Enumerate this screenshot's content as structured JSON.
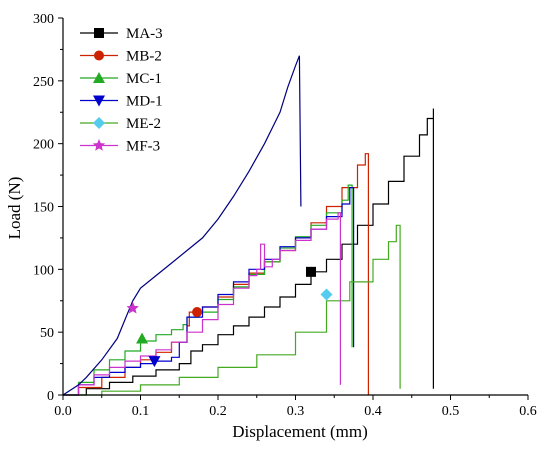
{
  "chart_data": {
    "type": "line",
    "xlabel": "Displacement (mm)",
    "ylabel": "Load (N)",
    "xlim": [
      0,
      0.6
    ],
    "ylim": [
      0,
      300
    ],
    "xticks": [
      "0.0",
      "0.1",
      "0.2",
      "0.3",
      "0.4",
      "0.5",
      "0.6"
    ],
    "yticks": [
      "0",
      "50",
      "100",
      "150",
      "200",
      "250",
      "300"
    ],
    "grid": false,
    "legend": "top-left",
    "series": [
      {
        "name": "MA-3",
        "color": "#000000",
        "marker": "square",
        "marker_at": [
          0.32,
          98
        ],
        "step": true,
        "points": [
          [
            0.0,
            0
          ],
          [
            0.03,
            5
          ],
          [
            0.06,
            10
          ],
          [
            0.09,
            15
          ],
          [
            0.12,
            20
          ],
          [
            0.15,
            25
          ],
          [
            0.165,
            35
          ],
          [
            0.18,
            40
          ],
          [
            0.2,
            48
          ],
          [
            0.22,
            55
          ],
          [
            0.24,
            62
          ],
          [
            0.26,
            70
          ],
          [
            0.28,
            78
          ],
          [
            0.3,
            88
          ],
          [
            0.32,
            98
          ],
          [
            0.34,
            108
          ],
          [
            0.36,
            120
          ],
          [
            0.38,
            135
          ],
          [
            0.4,
            152
          ],
          [
            0.42,
            170
          ],
          [
            0.44,
            190
          ],
          [
            0.46,
            207
          ],
          [
            0.47,
            220
          ],
          [
            0.478,
            228
          ],
          [
            0.478,
            5
          ]
        ]
      },
      {
        "name": "MB-2",
        "color": "#cc2200",
        "marker": "circle",
        "marker_at": [
          0.173,
          66
        ],
        "step": true,
        "points": [
          [
            0.0,
            0
          ],
          [
            0.02,
            6
          ],
          [
            0.05,
            14
          ],
          [
            0.08,
            22
          ],
          [
            0.1,
            28
          ],
          [
            0.12,
            34
          ],
          [
            0.14,
            42
          ],
          [
            0.16,
            55
          ],
          [
            0.163,
            66
          ],
          [
            0.18,
            70
          ],
          [
            0.2,
            78
          ],
          [
            0.22,
            88
          ],
          [
            0.24,
            97
          ],
          [
            0.26,
            106
          ],
          [
            0.28,
            115
          ],
          [
            0.3,
            125
          ],
          [
            0.32,
            137
          ],
          [
            0.34,
            150
          ],
          [
            0.36,
            165
          ],
          [
            0.38,
            183
          ],
          [
            0.39,
            192
          ],
          [
            0.394,
            192
          ],
          [
            0.394,
            0
          ]
        ]
      },
      {
        "name": "MC-1",
        "color": "#22aa22",
        "marker": "triangle-up",
        "marker_at": [
          0.102,
          45
        ],
        "step": true,
        "points": [
          [
            0.0,
            0
          ],
          [
            0.02,
            10
          ],
          [
            0.04,
            20
          ],
          [
            0.06,
            28
          ],
          [
            0.08,
            35
          ],
          [
            0.1,
            43
          ],
          [
            0.12,
            48
          ],
          [
            0.14,
            52
          ],
          [
            0.155,
            56
          ],
          [
            0.16,
            62
          ],
          [
            0.175,
            66
          ],
          [
            0.2,
            76
          ],
          [
            0.22,
            86
          ],
          [
            0.24,
            96
          ],
          [
            0.26,
            106
          ],
          [
            0.28,
            117
          ],
          [
            0.3,
            126
          ],
          [
            0.32,
            135
          ],
          [
            0.34,
            145
          ],
          [
            0.36,
            155
          ],
          [
            0.368,
            167
          ],
          [
            0.373,
            167
          ],
          [
            0.373,
            38
          ]
        ]
      },
      {
        "name": "MD-1",
        "color": "#0000cc",
        "marker": "triangle-down",
        "marker_at": [
          0.118,
          27
        ],
        "step": true,
        "points": [
          [
            0.0,
            0
          ],
          [
            0.02,
            8
          ],
          [
            0.04,
            14
          ],
          [
            0.06,
            18
          ],
          [
            0.08,
            22
          ],
          [
            0.1,
            25
          ],
          [
            0.118,
            27
          ],
          [
            0.14,
            30
          ],
          [
            0.15,
            42
          ],
          [
            0.16,
            62
          ],
          [
            0.18,
            70
          ],
          [
            0.2,
            80
          ],
          [
            0.22,
            90
          ],
          [
            0.24,
            100
          ],
          [
            0.26,
            108
          ],
          [
            0.28,
            118
          ],
          [
            0.3,
            125
          ],
          [
            0.32,
            132
          ],
          [
            0.34,
            142
          ],
          [
            0.36,
            152
          ],
          [
            0.37,
            165
          ],
          [
            0.375,
            165
          ],
          [
            0.375,
            38
          ]
        ]
      },
      {
        "name": "ME-2",
        "color": "#44aa22",
        "marker": "diamond",
        "marker_at": [
          0.34,
          80
        ],
        "marker_color": "#55ccee",
        "step": true,
        "points": [
          [
            0.0,
            0
          ],
          [
            0.05,
            3
          ],
          [
            0.1,
            8
          ],
          [
            0.15,
            14
          ],
          [
            0.2,
            22
          ],
          [
            0.25,
            32
          ],
          [
            0.3,
            50
          ],
          [
            0.34,
            75
          ],
          [
            0.37,
            90
          ],
          [
            0.4,
            108
          ],
          [
            0.42,
            122
          ],
          [
            0.43,
            135
          ],
          [
            0.435,
            135
          ],
          [
            0.435,
            5
          ]
        ]
      },
      {
        "name": "MF-3",
        "color": "#cc33cc",
        "marker": "star",
        "marker_at": [
          0.09,
          69
        ],
        "step": true,
        "points": [
          [
            0.0,
            0
          ],
          [
            0.02,
            8
          ],
          [
            0.04,
            16
          ],
          [
            0.06,
            22
          ],
          [
            0.08,
            27
          ],
          [
            0.1,
            31
          ],
          [
            0.12,
            36
          ],
          [
            0.14,
            42
          ],
          [
            0.16,
            50
          ],
          [
            0.18,
            60
          ],
          [
            0.2,
            72
          ],
          [
            0.22,
            85
          ],
          [
            0.24,
            95
          ],
          [
            0.25,
            100
          ],
          [
            0.255,
            120
          ],
          [
            0.26,
            102
          ],
          [
            0.27,
            108
          ],
          [
            0.28,
            115
          ],
          [
            0.3,
            123
          ],
          [
            0.32,
            132
          ],
          [
            0.34,
            140
          ],
          [
            0.355,
            145
          ],
          [
            0.358,
            145
          ],
          [
            0.358,
            8
          ]
        ]
      },
      {
        "name": "",
        "color": "#000080",
        "marker": "none",
        "step": false,
        "points": [
          [
            0.0,
            0
          ],
          [
            0.02,
            8
          ],
          [
            0.03,
            14
          ],
          [
            0.05,
            28
          ],
          [
            0.07,
            45
          ],
          [
            0.08,
            60
          ],
          [
            0.09,
            75
          ],
          [
            0.1,
            85
          ],
          [
            0.12,
            95
          ],
          [
            0.14,
            105
          ],
          [
            0.16,
            115
          ],
          [
            0.18,
            125
          ],
          [
            0.2,
            140
          ],
          [
            0.22,
            158
          ],
          [
            0.24,
            178
          ],
          [
            0.26,
            200
          ],
          [
            0.28,
            225
          ],
          [
            0.29,
            245
          ],
          [
            0.3,
            262
          ],
          [
            0.305,
            270
          ],
          [
            0.307,
            150
          ]
        ]
      }
    ]
  }
}
